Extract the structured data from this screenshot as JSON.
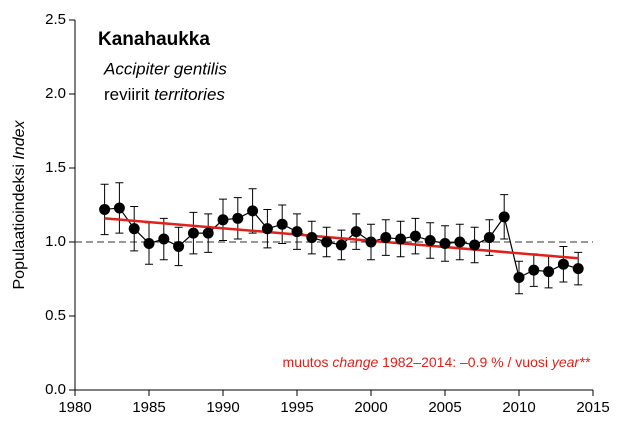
{
  "chart_data": {
    "type": "line",
    "title": "Kanahaukka",
    "species": "Accipiter gentilis",
    "subtitle": [
      "reviirit ",
      "territories"
    ],
    "ylabel": [
      "Populaatioindeksi ",
      "Index"
    ],
    "annotation": [
      "muutos ",
      "change",
      " 1982–2014: –0.9 % / vuosi ",
      "year**"
    ],
    "x": [
      1982,
      1983,
      1984,
      1985,
      1986,
      1987,
      1988,
      1989,
      1990,
      1991,
      1992,
      1993,
      1994,
      1995,
      1996,
      1997,
      1998,
      1999,
      2000,
      2001,
      2002,
      2003,
      2004,
      2005,
      2006,
      2007,
      2008,
      2009,
      2010,
      2011,
      2012,
      2013,
      2014
    ],
    "series": [
      {
        "color": "#000000",
        "values": [
          1.22,
          1.23,
          1.09,
          0.99,
          1.02,
          0.97,
          1.06,
          1.06,
          1.15,
          1.16,
          1.21,
          1.09,
          1.12,
          1.07,
          1.03,
          1.0,
          0.98,
          1.07,
          1.0,
          1.03,
          1.02,
          1.04,
          1.01,
          0.99,
          1.0,
          0.98,
          1.03,
          1.17,
          0.76,
          0.81,
          0.8,
          0.85,
          0.82
        ],
        "errors": [
          0.17,
          0.17,
          0.15,
          0.14,
          0.14,
          0.13,
          0.14,
          0.13,
          0.14,
          0.14,
          0.15,
          0.13,
          0.13,
          0.12,
          0.11,
          0.1,
          0.1,
          0.12,
          0.12,
          0.12,
          0.12,
          0.12,
          0.12,
          0.12,
          0.12,
          0.12,
          0.12,
          0.15,
          0.11,
          0.11,
          0.11,
          0.12,
          0.11
        ]
      }
    ],
    "trend": {
      "color": "#e0201a",
      "x": [
        1982,
        2014
      ],
      "values": [
        1.16,
        0.89
      ]
    },
    "reference_line": 1,
    "xlim": [
      1980,
      2015
    ],
    "xticks": [
      1980,
      1985,
      1990,
      1995,
      2000,
      2005,
      2010,
      2015
    ],
    "ylim": [
      0,
      2.5
    ],
    "yticks": [
      {
        "value": 0,
        "label": "0.0"
      },
      0.5,
      {
        "value": 1,
        "label": "1.0"
      },
      1.5,
      {
        "value": 2,
        "label": "2.0"
      },
      2.5
    ]
  }
}
